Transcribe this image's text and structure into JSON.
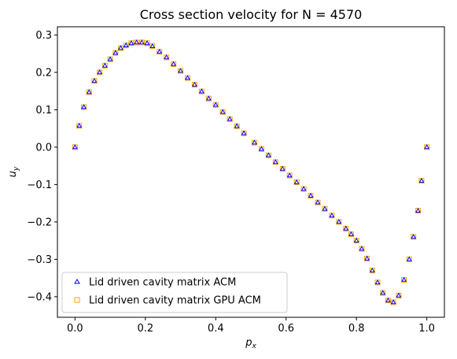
{
  "chart_data": {
    "type": "scatter",
    "title": "Cross section velocity for N = 4570",
    "xlabel": "p",
    "xlabel_sub": "x",
    "ylabel": "u",
    "ylabel_sub": "y",
    "xlim": [
      -0.05,
      1.05
    ],
    "ylim": [
      -0.455,
      0.322
    ],
    "xticks": [
      0.0,
      0.2,
      0.4,
      0.6,
      0.8,
      1.0
    ],
    "xtick_labels": [
      "0.0",
      "0.2",
      "0.4",
      "0.6",
      "0.8",
      "1.0"
    ],
    "yticks": [
      -0.4,
      -0.3,
      -0.2,
      -0.1,
      0.0,
      0.1,
      0.2,
      0.3
    ],
    "ytick_labels": [
      "−0.4",
      "−0.3",
      "−0.2",
      "−0.1",
      "0.0",
      "0.1",
      "0.2",
      "0.3"
    ],
    "grid": false,
    "legend_position": "lower-left",
    "series": [
      {
        "name": "Lid driven cavity matrix ACM",
        "marker": "triangle",
        "color": "#0000ff"
      },
      {
        "name": "Lid driven cavity matrix GPU ACM",
        "marker": "square",
        "color": "#ffa500"
      }
    ],
    "x": [
      0.0,
      0.012,
      0.025,
      0.04,
      0.055,
      0.07,
      0.085,
      0.1,
      0.115,
      0.13,
      0.145,
      0.16,
      0.175,
      0.19,
      0.205,
      0.22,
      0.24,
      0.26,
      0.28,
      0.3,
      0.32,
      0.34,
      0.36,
      0.38,
      0.4,
      0.42,
      0.44,
      0.46,
      0.48,
      0.51,
      0.53,
      0.55,
      0.57,
      0.59,
      0.61,
      0.63,
      0.65,
      0.67,
      0.69,
      0.71,
      0.73,
      0.75,
      0.77,
      0.785,
      0.8,
      0.815,
      0.83,
      0.845,
      0.86,
      0.875,
      0.89,
      0.905,
      0.92,
      0.935,
      0.95,
      0.962,
      0.975,
      0.985,
      1.0
    ],
    "values": [
      0.0,
      0.057,
      0.107,
      0.147,
      0.177,
      0.2,
      0.218,
      0.235,
      0.252,
      0.265,
      0.272,
      0.278,
      0.28,
      0.28,
      0.278,
      0.27,
      0.255,
      0.24,
      0.222,
      0.204,
      0.185,
      0.167,
      0.149,
      0.13,
      0.113,
      0.094,
      0.075,
      0.056,
      0.037,
      0.012,
      -0.005,
      -0.022,
      -0.04,
      -0.058,
      -0.076,
      -0.094,
      -0.112,
      -0.13,
      -0.148,
      -0.165,
      -0.183,
      -0.2,
      -0.218,
      -0.233,
      -0.25,
      -0.272,
      -0.298,
      -0.33,
      -0.362,
      -0.39,
      -0.41,
      -0.415,
      -0.397,
      -0.355,
      -0.3,
      -0.24,
      -0.17,
      -0.09,
      0.0
    ]
  }
}
